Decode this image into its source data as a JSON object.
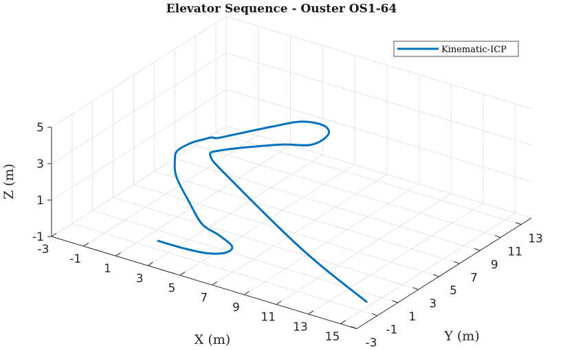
{
  "chart_data": {
    "type": "line",
    "title": "Elevator Sequence - Ouster OS1-64",
    "xlabel": "X (m)",
    "ylabel": "Y (m)",
    "zlabel": "Z (m)",
    "xlim": [
      -3,
      16
    ],
    "ylim": [
      -3,
      14
    ],
    "zlim": [
      -1,
      5
    ],
    "xticks": [
      -3,
      -1,
      1,
      3,
      5,
      7,
      9,
      11,
      13,
      15
    ],
    "yticks": [
      -3,
      -1,
      1,
      3,
      5,
      7,
      9,
      11,
      13
    ],
    "zticks": [
      -1,
      1,
      3,
      5
    ],
    "grid": true,
    "legend_position": "top-right",
    "series": [
      {
        "name": "Kinematic-ICP",
        "color": "#0072bd",
        "points": [
          [
            15.0,
            -0.5,
            -0.68
          ],
          [
            10.0,
            1.3,
            0.1
          ],
          [
            3.0,
            5.0,
            0.9
          ],
          [
            1.4,
            5.6,
            1.5
          ],
          [
            1.7,
            6.2,
            1.7
          ],
          [
            4.0,
            8.2,
            1.9
          ],
          [
            5.3,
            9.3,
            1.85
          ],
          [
            5.4,
            10.8,
            1.9
          ],
          [
            4.6,
            11.6,
            1.9
          ],
          [
            3.4,
            11.3,
            1.9
          ],
          [
            2.3,
            10.1,
            1.75
          ],
          [
            1.0,
            8.7,
            1.5
          ],
          [
            0.4,
            7.8,
            1.45
          ],
          [
            0.2,
            7.6,
            1.5
          ],
          [
            -0.1,
            7.2,
            1.45
          ],
          [
            -0.5,
            6.6,
            1.35
          ],
          [
            -0.8,
            5.8,
            1.15
          ],
          [
            -0.5,
            5.1,
            0.95
          ],
          [
            0.3,
            4.0,
            0.65
          ],
          [
            2.0,
            2.6,
            0.2
          ],
          [
            3.5,
            1.5,
            -0.2
          ],
          [
            4.9,
            0.9,
            -0.2
          ],
          [
            6.0,
            0.5,
            -0.4
          ],
          [
            6.0,
            -0.2,
            -0.5
          ],
          [
            5.3,
            -0.9,
            -0.45
          ],
          [
            4.2,
            -1.4,
            -0.3
          ],
          [
            3.0,
            -2.0,
            0.0
          ]
        ]
      }
    ]
  }
}
